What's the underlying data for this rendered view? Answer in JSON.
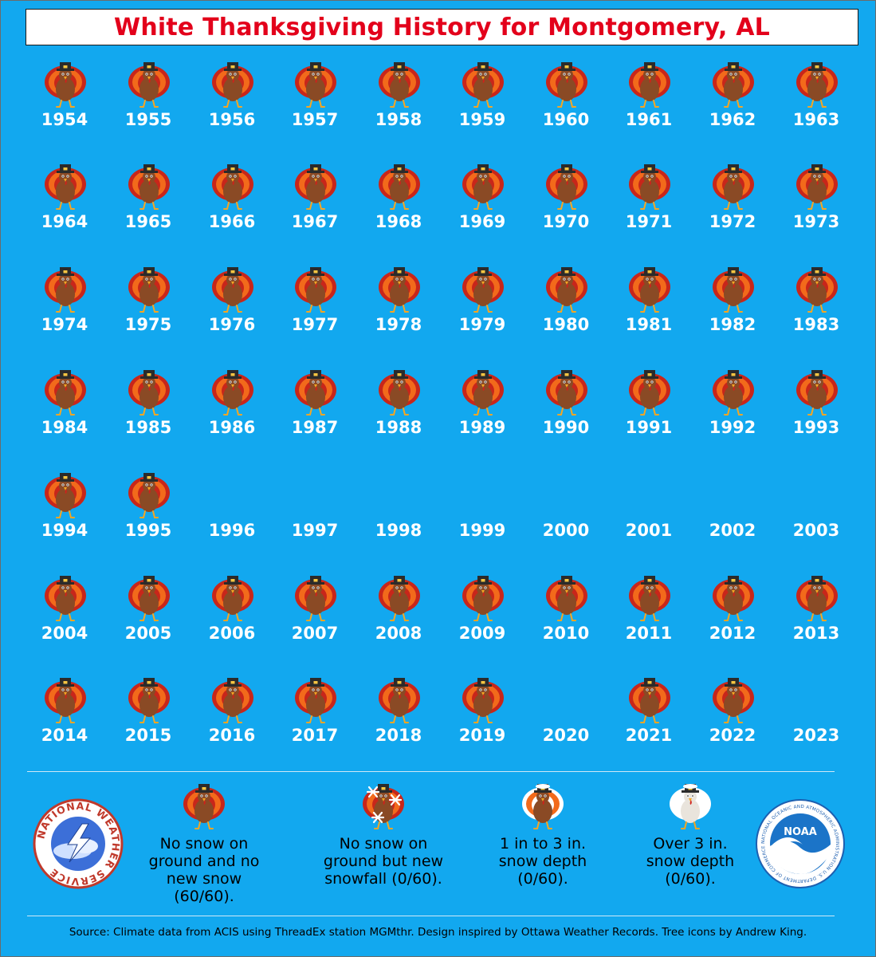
{
  "title": "White Thanksgiving History for Montgomery, AL",
  "colors": {
    "background": "#12a8ef",
    "title": "#e3001b",
    "year_label": "#ffffff",
    "turkey_body": "#8a4a25",
    "feather_orange": "#f26a1b",
    "feather_red": "#c8261a",
    "hat": "#2b2b2b"
  },
  "chart_data": {
    "type": "table",
    "title": "White Thanksgiving History for Montgomery, AL",
    "categories": [
      "No snow on ground and no new snow",
      "No snow on ground but new snowfall",
      "1 in to 3 in. snow depth",
      "Over 3 in. snow depth"
    ],
    "years": [
      {
        "year": "1954",
        "category": "no-snow"
      },
      {
        "year": "1955",
        "category": "no-snow"
      },
      {
        "year": "1956",
        "category": "no-snow"
      },
      {
        "year": "1957",
        "category": "no-snow"
      },
      {
        "year": "1958",
        "category": "no-snow"
      },
      {
        "year": "1959",
        "category": "no-snow"
      },
      {
        "year": "1960",
        "category": "no-snow"
      },
      {
        "year": "1961",
        "category": "no-snow"
      },
      {
        "year": "1962",
        "category": "no-snow"
      },
      {
        "year": "1963",
        "category": "no-snow"
      },
      {
        "year": "1964",
        "category": "no-snow"
      },
      {
        "year": "1965",
        "category": "no-snow"
      },
      {
        "year": "1966",
        "category": "no-snow"
      },
      {
        "year": "1967",
        "category": "no-snow"
      },
      {
        "year": "1968",
        "category": "no-snow"
      },
      {
        "year": "1969",
        "category": "no-snow"
      },
      {
        "year": "1970",
        "category": "no-snow"
      },
      {
        "year": "1971",
        "category": "no-snow"
      },
      {
        "year": "1972",
        "category": "no-snow"
      },
      {
        "year": "1973",
        "category": "no-snow"
      },
      {
        "year": "1974",
        "category": "no-snow"
      },
      {
        "year": "1975",
        "category": "no-snow"
      },
      {
        "year": "1976",
        "category": "no-snow"
      },
      {
        "year": "1977",
        "category": "no-snow"
      },
      {
        "year": "1978",
        "category": "no-snow"
      },
      {
        "year": "1979",
        "category": "no-snow"
      },
      {
        "year": "1980",
        "category": "no-snow"
      },
      {
        "year": "1981",
        "category": "no-snow"
      },
      {
        "year": "1982",
        "category": "no-snow"
      },
      {
        "year": "1983",
        "category": "no-snow"
      },
      {
        "year": "1984",
        "category": "no-snow"
      },
      {
        "year": "1985",
        "category": "no-snow"
      },
      {
        "year": "1986",
        "category": "no-snow"
      },
      {
        "year": "1987",
        "category": "no-snow"
      },
      {
        "year": "1988",
        "category": "no-snow"
      },
      {
        "year": "1989",
        "category": "no-snow"
      },
      {
        "year": "1990",
        "category": "no-snow"
      },
      {
        "year": "1991",
        "category": "no-snow"
      },
      {
        "year": "1992",
        "category": "no-snow"
      },
      {
        "year": "1993",
        "category": "no-snow"
      },
      {
        "year": "1994",
        "category": "no-snow"
      },
      {
        "year": "1995",
        "category": "no-snow"
      },
      {
        "year": "1996",
        "category": "missing"
      },
      {
        "year": "1997",
        "category": "missing"
      },
      {
        "year": "1998",
        "category": "missing"
      },
      {
        "year": "1999",
        "category": "missing"
      },
      {
        "year": "2000",
        "category": "missing"
      },
      {
        "year": "2001",
        "category": "missing"
      },
      {
        "year": "2002",
        "category": "missing"
      },
      {
        "year": "2003",
        "category": "missing"
      },
      {
        "year": "2004",
        "category": "no-snow"
      },
      {
        "year": "2005",
        "category": "no-snow"
      },
      {
        "year": "2006",
        "category": "no-snow"
      },
      {
        "year": "2007",
        "category": "no-snow"
      },
      {
        "year": "2008",
        "category": "no-snow"
      },
      {
        "year": "2009",
        "category": "no-snow"
      },
      {
        "year": "2010",
        "category": "no-snow"
      },
      {
        "year": "2011",
        "category": "no-snow"
      },
      {
        "year": "2012",
        "category": "no-snow"
      },
      {
        "year": "2013",
        "category": "no-snow"
      },
      {
        "year": "2014",
        "category": "no-snow"
      },
      {
        "year": "2015",
        "category": "no-snow"
      },
      {
        "year": "2016",
        "category": "no-snow"
      },
      {
        "year": "2017",
        "category": "no-snow"
      },
      {
        "year": "2018",
        "category": "no-snow"
      },
      {
        "year": "2019",
        "category": "no-snow"
      },
      {
        "year": "2020",
        "category": "missing"
      },
      {
        "year": "2021",
        "category": "no-snow"
      },
      {
        "year": "2022",
        "category": "no-snow"
      },
      {
        "year": "2023",
        "category": "missing"
      }
    ]
  },
  "legend": [
    {
      "icon": "turkey-icon",
      "label_lines": [
        "No snow on",
        "ground and no",
        "new snow (60/60)."
      ]
    },
    {
      "icon": "turkey-snowflake-icon",
      "label_lines": [
        "No snow on",
        "ground but new",
        "snowfall (0/60)."
      ]
    },
    {
      "icon": "turkey-light-snow-icon",
      "label_lines": [
        "1 in to 3 in.",
        "snow depth",
        "(0/60)."
      ]
    },
    {
      "icon": "turkey-heavy-snow-icon",
      "label_lines": [
        "Over 3 in.",
        "snow depth",
        "(0/60)."
      ]
    }
  ],
  "logos": {
    "nws": "NATIONAL WEATHER SERVICE",
    "noaa": "NOAA",
    "noaa_ring": "NATIONAL OCEANIC AND ATMOSPHERIC ADMINISTRATION U.S. DEPARTMENT OF COMMERCE"
  },
  "source": "Source: Climate data from ACIS using ThreadEx station MGMthr. Design inspired by Ottawa Weather Records. Tree icons by Andrew King."
}
